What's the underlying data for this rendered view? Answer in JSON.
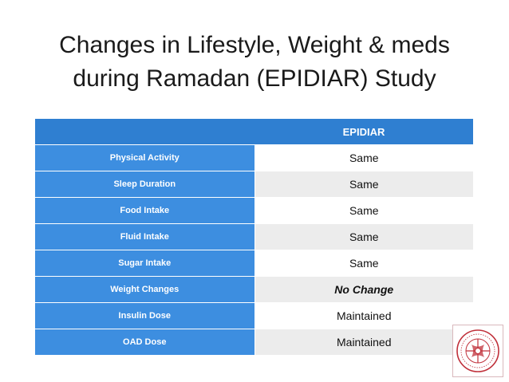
{
  "title": {
    "line1": "Changes in Lifestyle, Weight & meds",
    "line2": "during Ramadan (EPIDIAR) Study"
  },
  "table": {
    "header": [
      "",
      "EPIDIAR"
    ],
    "rows": [
      {
        "label": "Physical Activity",
        "value": "Same"
      },
      {
        "label": "Sleep Duration",
        "value": "Same"
      },
      {
        "label": "Food Intake",
        "value": "Same"
      },
      {
        "label": "Fluid Intake",
        "value": "Same"
      },
      {
        "label": "Sugar Intake",
        "value": "Same"
      },
      {
        "label": "Weight Changes",
        "value": "No Change"
      },
      {
        "label": "Insulin Dose",
        "value": "Maintained"
      },
      {
        "label": "OAD Dose",
        "value": "Maintained"
      }
    ]
  },
  "colors": {
    "header_blue": "#2f7fd1",
    "label_blue": "#3d8ee0",
    "row_stripe": "#ececec",
    "seal_red": "#c0303a"
  },
  "icons": {
    "seal": "institution-seal-icon"
  }
}
